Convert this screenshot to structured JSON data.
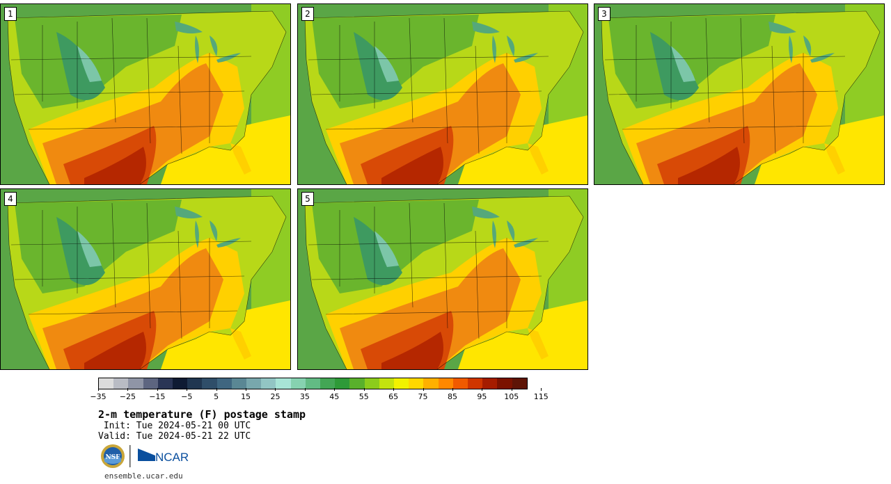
{
  "panels": [
    {
      "label": "1"
    },
    {
      "label": "2"
    },
    {
      "label": "3"
    },
    {
      "label": "4"
    },
    {
      "label": "5"
    }
  ],
  "colorbar": {
    "ticks": [
      "−35",
      "−25",
      "−15",
      "−5",
      "5",
      "15",
      "25",
      "35",
      "45",
      "55",
      "65",
      "75",
      "85",
      "95",
      "105",
      "115"
    ],
    "colors": [
      "#dcdcdc",
      "#b9bcc4",
      "#8f95a6",
      "#5d6580",
      "#2a3555",
      "#0f1b33",
      "#203650",
      "#2f4e69",
      "#3f6680",
      "#5a8794",
      "#78a7ad",
      "#92c5c4",
      "#a8e4d6",
      "#86d2b0",
      "#62bb84",
      "#43a655",
      "#2e9a38",
      "#59b02c",
      "#8ccc1c",
      "#c3e30e",
      "#f2f200",
      "#ffd800",
      "#ffb000",
      "#ff8800",
      "#f05a00",
      "#cf3500",
      "#a51c00",
      "#7b1200",
      "#5e1406"
    ],
    "map_palette": {
      "ocean_pacific": "#5aa646",
      "ocean_atlantic": "#8fcc24",
      "gulf": "#ffe600",
      "hot": "#b52700",
      "warm": "#f08a10",
      "mild": "#ffd000",
      "cool": "#b8d818",
      "cold": "#3e9a60",
      "lakes": "#55a87a"
    }
  },
  "title": "2-m temperature (F) postage stamp",
  "init_line": " Init: Tue 2024-05-21 00 UTC",
  "valid_line": "Valid: Tue 2024-05-21 22 UTC",
  "logos": {
    "nsf": "NSF",
    "ncar": "NCAR"
  },
  "footer": "ensemble.ucar.edu"
}
